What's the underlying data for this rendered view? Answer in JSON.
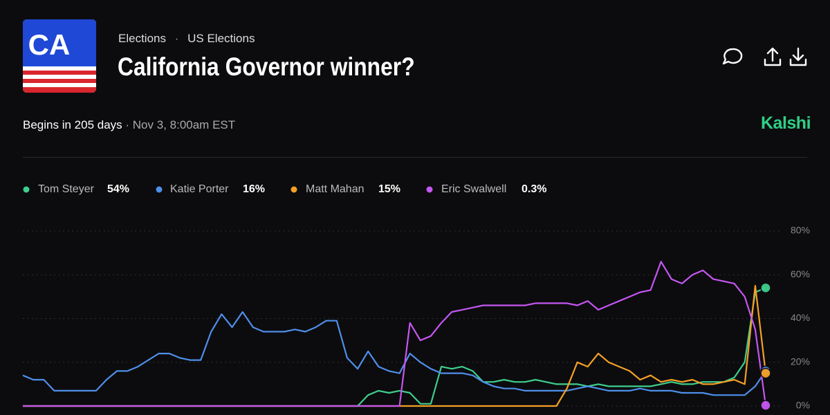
{
  "header": {
    "logo": "CA",
    "breadcrumb": [
      "Elections",
      "US Elections"
    ],
    "title": "California Governor winner?",
    "status": "Begins in 205 days",
    "date": "Nov 3, 8:00am EST",
    "brand": "Kalshi"
  },
  "chart_data": {
    "type": "line",
    "ylim": [
      0,
      80
    ],
    "yticks": [
      {
        "value": 0,
        "label": "0%"
      },
      {
        "value": 20,
        "label": "20%"
      },
      {
        "value": 40,
        "label": "40%"
      },
      {
        "value": 60,
        "label": "60%"
      },
      {
        "value": 80,
        "label": "80%"
      }
    ],
    "grid": true,
    "series": [
      {
        "name": "Tom Steyer",
        "color": "#3ecf8e",
        "current": 54,
        "current_label": "54%",
        "values": [
          0,
          0,
          0,
          0,
          0,
          0,
          0,
          0,
          0,
          0,
          0,
          0,
          0,
          0,
          0,
          0,
          0,
          0,
          0,
          0,
          0,
          0,
          0,
          0,
          0,
          0,
          0,
          0,
          0,
          0,
          0,
          0,
          0,
          5,
          7,
          6,
          7,
          6,
          1,
          1,
          18,
          17,
          18,
          16,
          11,
          11,
          12,
          11,
          11,
          12,
          11,
          10,
          10,
          10,
          9,
          10,
          9,
          9,
          9,
          9,
          9,
          10,
          11,
          10,
          10,
          11,
          11,
          11,
          13,
          20,
          52,
          54
        ]
      },
      {
        "name": "Katie Porter",
        "color": "#4f8fea",
        "current": 16,
        "current_label": "16%",
        "values": [
          14,
          12,
          12,
          7,
          7,
          7,
          7,
          7,
          12,
          16,
          16,
          18,
          21,
          24,
          24,
          22,
          21,
          21,
          34,
          42,
          36,
          43,
          36,
          34,
          34,
          34,
          35,
          34,
          36,
          39,
          39,
          22,
          17,
          25,
          18,
          16,
          15,
          24,
          20,
          17,
          15,
          15,
          15,
          14,
          11,
          9,
          8,
          8,
          7,
          7,
          7,
          7,
          7,
          8,
          9,
          8,
          7,
          7,
          7,
          8,
          7,
          7,
          7,
          6,
          6,
          6,
          5,
          5,
          5,
          5,
          9,
          16
        ]
      },
      {
        "name": "Matt Mahan",
        "color": "#f5a025",
        "current": 15,
        "current_label": "15%",
        "values": [
          0,
          0,
          0,
          0,
          0,
          0,
          0,
          0,
          0,
          0,
          0,
          0,
          0,
          0,
          0,
          0,
          0,
          0,
          0,
          0,
          0,
          0,
          0,
          0,
          0,
          0,
          0,
          0,
          0,
          0,
          0,
          0,
          0,
          0,
          0,
          0,
          0,
          0,
          0,
          0,
          0,
          0,
          0,
          0,
          0,
          0,
          0,
          0,
          0,
          0,
          0,
          0,
          8,
          20,
          18,
          24,
          20,
          18,
          16,
          12,
          14,
          11,
          12,
          11,
          12,
          10,
          10,
          11,
          12,
          10,
          55,
          15
        ]
      },
      {
        "name": "Eric Swalwell",
        "color": "#c656f2",
        "current": 0.3,
        "current_label": "0.3%",
        "values": [
          0,
          0,
          0,
          0,
          0,
          0,
          0,
          0,
          0,
          0,
          0,
          0,
          0,
          0,
          0,
          0,
          0,
          0,
          0,
          0,
          0,
          0,
          0,
          0,
          0,
          0,
          0,
          0,
          0,
          0,
          0,
          0,
          0,
          0,
          0,
          0,
          0,
          38,
          30,
          32,
          38,
          43,
          44,
          45,
          46,
          46,
          46,
          46,
          46,
          47,
          47,
          47,
          47,
          46,
          48,
          44,
          46,
          48,
          50,
          52,
          53,
          66,
          58,
          56,
          60,
          62,
          58,
          57,
          56,
          50,
          35,
          0.3
        ]
      }
    ]
  }
}
